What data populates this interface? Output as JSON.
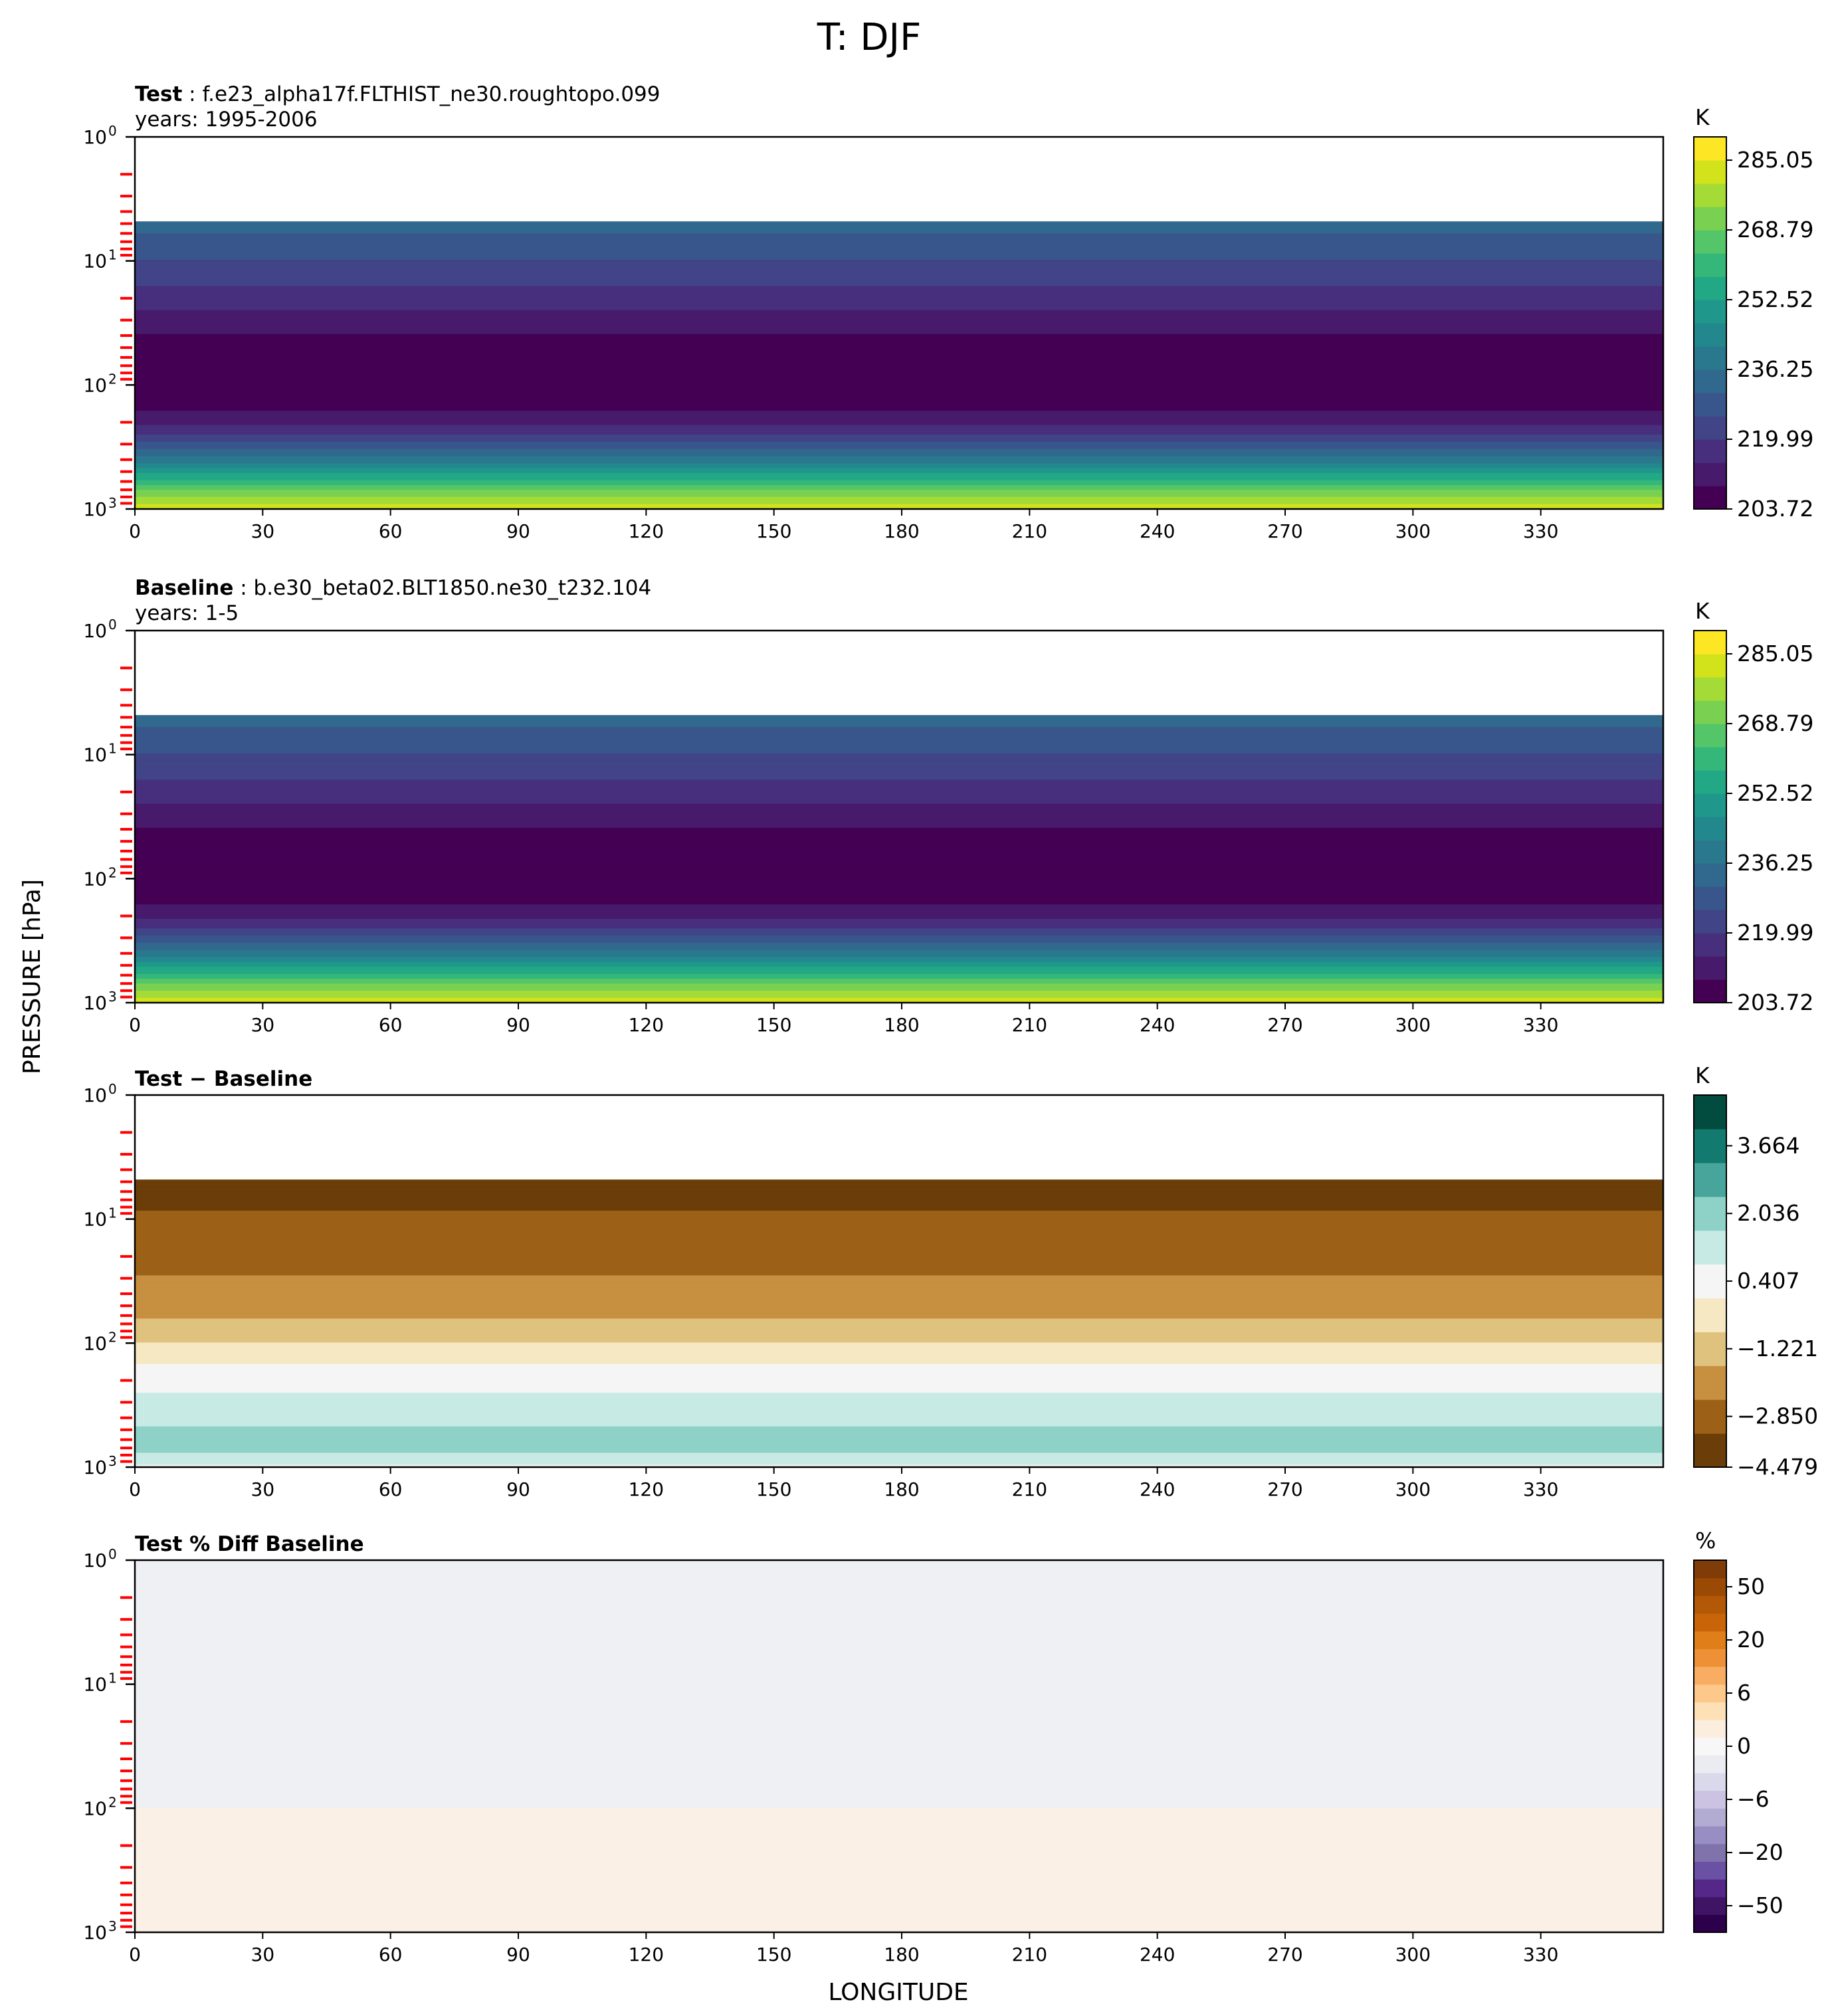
{
  "figure": {
    "title": "T: DJF",
    "ylabel": "PRESSURE [hPa]",
    "xlabel": "LONGITUDE"
  },
  "chart_data": [
    {
      "type": "heatmap",
      "panel": "test",
      "title_bold": "Test",
      "title_rest": " : f.e23_alpha17f.FLTHIST_ne30.roughtopo.099",
      "subtitle": "years: 1995-2006",
      "xlabel": "",
      "ylabel": "",
      "x_ticks": [
        "0",
        "30",
        "60",
        "90",
        "120",
        "150",
        "180",
        "210",
        "240",
        "270",
        "300",
        "330"
      ],
      "xlim": [
        0,
        358.75
      ],
      "y_ticks": [
        {
          "base": "10",
          "exp": "0"
        },
        {
          "base": "10",
          "exp": "1"
        },
        {
          "base": "10",
          "exp": "2"
        },
        {
          "base": "10",
          "exp": "3"
        }
      ],
      "ylim": [
        1000,
        1
      ],
      "yscale": "log",
      "data_top_hPa": 4.8,
      "colorbar": {
        "unit": "K",
        "colormap": "viridis",
        "ticks": [
          "203.72",
          "219.99",
          "236.25",
          "252.52",
          "268.79",
          "285.05"
        ],
        "colors": [
          "#440154",
          "#481a6c",
          "#472f7d",
          "#414487",
          "#39568c",
          "#31688e",
          "#2a788e",
          "#23888e",
          "#1f988b",
          "#22a884",
          "#35b779",
          "#54c568",
          "#7ad151",
          "#a5db36",
          "#d2e21b",
          "#fde725"
        ]
      },
      "series": [
        {
          "levels_hPa": [
            1000,
            900,
            800,
            700,
            600,
            500,
            400,
            300,
            250,
            200,
            150,
            100,
            70,
            50,
            30,
            20,
            10,
            7,
            5
          ],
          "values_K": [
            286,
            281,
            276,
            270,
            262,
            252,
            240,
            228,
            220,
            213,
            208,
            205,
            205,
            207,
            212,
            218,
            226,
            230,
            234
          ]
        }
      ]
    },
    {
      "type": "heatmap",
      "panel": "baseline",
      "title_bold": "Baseline",
      "title_rest": " : b.e30_beta02.BLT1850.ne30_t232.104",
      "subtitle": "years: 1-5",
      "xlabel": "",
      "ylabel": "",
      "x_ticks": [
        "0",
        "30",
        "60",
        "90",
        "120",
        "150",
        "180",
        "210",
        "240",
        "270",
        "300",
        "330"
      ],
      "xlim": [
        0,
        358.75
      ],
      "y_ticks": [
        {
          "base": "10",
          "exp": "0"
        },
        {
          "base": "10",
          "exp": "1"
        },
        {
          "base": "10",
          "exp": "2"
        },
        {
          "base": "10",
          "exp": "3"
        }
      ],
      "ylim": [
        1000,
        1
      ],
      "yscale": "log",
      "data_top_hPa": 4.8,
      "colorbar": {
        "unit": "K",
        "colormap": "viridis",
        "ticks": [
          "203.72",
          "219.99",
          "236.25",
          "252.52",
          "268.79",
          "285.05"
        ],
        "colors": [
          "#440154",
          "#481a6c",
          "#472f7d",
          "#414487",
          "#39568c",
          "#31688e",
          "#2a788e",
          "#23888e",
          "#1f988b",
          "#22a884",
          "#35b779",
          "#54c568",
          "#7ad151",
          "#a5db36",
          "#d2e21b",
          "#fde725"
        ]
      },
      "series": [
        {
          "levels_hPa": [
            1000,
            900,
            800,
            700,
            600,
            500,
            400,
            300,
            250,
            200,
            150,
            100,
            70,
            50,
            30,
            20,
            10,
            7,
            5
          ],
          "values_K": [
            286,
            281,
            276,
            270,
            262,
            252,
            240,
            228,
            220,
            213,
            208,
            205,
            205,
            207,
            212,
            218,
            226,
            230,
            234
          ]
        }
      ]
    },
    {
      "type": "heatmap",
      "panel": "difference",
      "title_bold": "Test − Baseline",
      "title_rest": "",
      "subtitle": "",
      "xlabel": "",
      "ylabel": "",
      "x_ticks": [
        "0",
        "30",
        "60",
        "90",
        "120",
        "150",
        "180",
        "210",
        "240",
        "270",
        "300",
        "330"
      ],
      "xlim": [
        0,
        358.75
      ],
      "y_ticks": [
        {
          "base": "10",
          "exp": "0"
        },
        {
          "base": "10",
          "exp": "1"
        },
        {
          "base": "10",
          "exp": "2"
        },
        {
          "base": "10",
          "exp": "3"
        }
      ],
      "ylim": [
        1000,
        1
      ],
      "yscale": "log",
      "data_top_hPa": 4.8,
      "colorbar": {
        "unit": "K",
        "colormap": "BrBG",
        "ticks": [
          "3.664",
          "2.036",
          "0.407",
          "−1.221",
          "−2.850",
          "−4.479"
        ],
        "colors": [
          "#6b3d08",
          "#9c6117",
          "#c78f40",
          "#dfc27d",
          "#f6e8c3",
          "#f5f5f5",
          "#c7eae5",
          "#8ed1c6",
          "#47a59b",
          "#137a6f",
          "#024c3f"
        ]
      },
      "series": [
        {
          "levels_hPa": [
            1000,
            850,
            700,
            500,
            300,
            200,
            150,
            100,
            70,
            50,
            30,
            20,
            10,
            5
          ],
          "values_K": [
            0.3,
            0.9,
            1.4,
            1.3,
            0.6,
            0.1,
            -0.4,
            -1.2,
            -1.8,
            -2.6,
            -2.8,
            -3.1,
            -3.6,
            -3.9
          ]
        }
      ]
    },
    {
      "type": "heatmap",
      "panel": "percent_difference",
      "title_bold": "Test % Diff Baseline",
      "title_rest": "",
      "subtitle": "",
      "xlabel": "LONGITUDE",
      "ylabel": "",
      "x_ticks": [
        "0",
        "30",
        "60",
        "90",
        "120",
        "150",
        "180",
        "210",
        "240",
        "270",
        "300",
        "330"
      ],
      "xlim": [
        0,
        358.75
      ],
      "y_ticks": [
        {
          "base": "10",
          "exp": "0"
        },
        {
          "base": "10",
          "exp": "1"
        },
        {
          "base": "10",
          "exp": "2"
        },
        {
          "base": "10",
          "exp": "3"
        }
      ],
      "ylim": [
        1000,
        1
      ],
      "yscale": "log",
      "colorbar": {
        "unit": "%",
        "colormap": "PuOr_r",
        "ticks": [
          "50",
          "20",
          "6",
          "0",
          "−6",
          "−20",
          "−50"
        ],
        "colors": [
          "#2d004b",
          "#401465",
          "#542788",
          "#6a51a3",
          "#8073ac",
          "#998ec3",
          "#b2abd2",
          "#cbc3e1",
          "#d8daeb",
          "#ebebf2",
          "#f7f7f7",
          "#fbeede",
          "#fee0b6",
          "#fdc88a",
          "#f9ad62",
          "#ee9035",
          "#e07e19",
          "#c96508",
          "#b35806",
          "#9a4a05",
          "#7f3b08"
        ]
      },
      "regions": [
        {
          "from_hPa": 1,
          "to_hPa": 100,
          "value_pct": -0.5,
          "color": "#eff0f4"
        },
        {
          "from_hPa": 100,
          "to_hPa": 1000,
          "value_pct": 0.5,
          "color": "#faf0e5"
        }
      ]
    }
  ]
}
